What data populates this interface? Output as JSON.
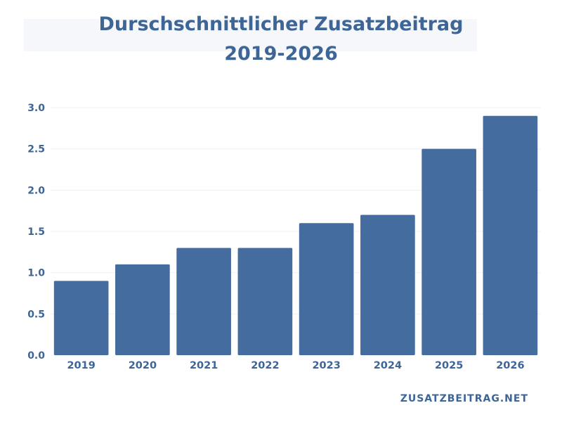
{
  "chart_data": {
    "type": "bar",
    "title": "Durschschnittlicher Zusatzbeitrag",
    "subtitle": "2019-2026",
    "xlabel": "",
    "ylabel": "",
    "categories": [
      "2019",
      "2020",
      "2021",
      "2022",
      "2023",
      "2024",
      "2025",
      "2026"
    ],
    "values": [
      0.9,
      1.1,
      1.3,
      1.3,
      1.6,
      1.7,
      2.5,
      2.9
    ],
    "ylim": [
      0,
      3.0
    ],
    "yticks": [
      "0.0",
      "0.5",
      "1.0",
      "1.5",
      "2.0",
      "2.5",
      "3.0"
    ],
    "grid": true,
    "legend": "none",
    "bar_color": "#456c9f",
    "text_color": "#3d6596"
  },
  "watermark": "ZUSATZBEITRAG.NET"
}
